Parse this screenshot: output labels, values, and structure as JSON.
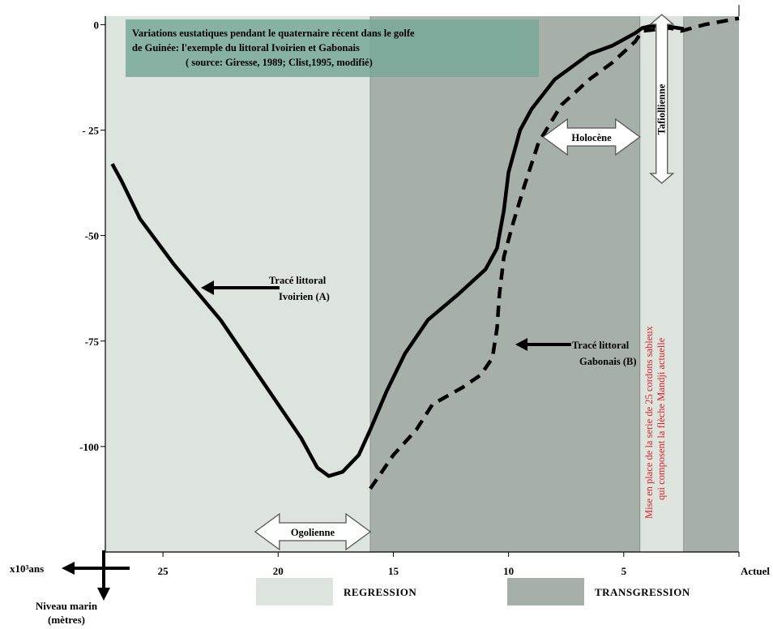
{
  "colors": {
    "regression": "#dde3dd",
    "transgression": "#a7b0a8",
    "title_box": "#78a898",
    "curve": "#000000",
    "red_note": "#e0202a",
    "arrow_fill": "#ffffff"
  },
  "chart_data": {
    "type": "line",
    "title_lines": [
      "Variations eustatiques pendant le quaternaire récent dans le golfe",
      "de Guinée: l'exemple du littoral Ivoirien et Gabonais",
      "( source: Giresse, 1989; Clist,1995, modifié)"
    ],
    "x_axis_label": "x10³ans",
    "y_axis_label_lines": [
      "Niveau marin",
      "(mètres)"
    ],
    "x_ticks": [
      "25",
      "20",
      "15",
      "10",
      "5",
      "Actuel"
    ],
    "y_ticks": [
      "0",
      "- 25",
      "-50",
      "-75",
      "-100"
    ],
    "xlim": [
      27.5,
      0
    ],
    "ylim": [
      -125,
      2
    ],
    "series": [
      {
        "name": "Tracé littoral Ivoirien (A)",
        "style": "solid",
        "points": [
          [
            27.2,
            -33
          ],
          [
            26.8,
            -37
          ],
          [
            26,
            -46
          ],
          [
            24.5,
            -57
          ],
          [
            22.5,
            -70
          ],
          [
            20.5,
            -86
          ],
          [
            19,
            -98
          ],
          [
            18.3,
            -105
          ],
          [
            17.8,
            -107
          ],
          [
            17.2,
            -106
          ],
          [
            16.5,
            -102
          ],
          [
            16,
            -96
          ],
          [
            15.3,
            -87
          ],
          [
            14.5,
            -78
          ],
          [
            13.5,
            -70
          ],
          [
            12.2,
            -64
          ],
          [
            11,
            -58
          ],
          [
            10.5,
            -53
          ],
          [
            10.2,
            -44
          ],
          [
            10,
            -35
          ],
          [
            9.5,
            -25
          ],
          [
            9,
            -20
          ],
          [
            8,
            -13
          ],
          [
            6.5,
            -7
          ],
          [
            5.5,
            -5
          ],
          [
            4.5,
            -2
          ],
          [
            4.2,
            -0.8
          ],
          [
            3.8,
            -0.3
          ],
          [
            3,
            -0.5
          ],
          [
            2.4,
            -1
          ]
        ]
      },
      {
        "name": "Tracé littoral Gabonais (B)",
        "style": "dashed",
        "points": [
          [
            16,
            -110
          ],
          [
            15,
            -102
          ],
          [
            14,
            -96
          ],
          [
            13.3,
            -90
          ],
          [
            12,
            -86
          ],
          [
            11.2,
            -83
          ],
          [
            10.7,
            -79
          ],
          [
            10.5,
            -72
          ],
          [
            10.4,
            -64
          ],
          [
            10.2,
            -55
          ],
          [
            9.8,
            -47
          ],
          [
            9.3,
            -38
          ],
          [
            8.7,
            -28
          ],
          [
            7.7,
            -19
          ],
          [
            6.5,
            -13
          ],
          [
            5.5,
            -9
          ],
          [
            4.5,
            -4
          ],
          [
            4.2,
            -1.5
          ],
          [
            3,
            -0.8
          ],
          [
            2.5,
            -1.5
          ],
          [
            1.5,
            0
          ],
          [
            0.5,
            1
          ],
          [
            0,
            1.5
          ]
        ]
      }
    ],
    "periods": [
      {
        "label": "REGRESSION",
        "from": 27.5,
        "to": 16
      },
      {
        "label": "TRANSGRESSION",
        "from": 16,
        "to": 4.3
      },
      {
        "label": "REGRESSION",
        "from": 4.3,
        "to": 2.4
      },
      {
        "label": "TRANSGRESSION",
        "from": 2.4,
        "to": 0
      }
    ],
    "stages": [
      {
        "label": "Ogolienne",
        "from": 21,
        "to": 16
      },
      {
        "label": "Holocène",
        "from": 8.5,
        "to": 4.3
      },
      {
        "label": "Tafiollienne",
        "from": 4.3,
        "to": 2.4
      }
    ],
    "annotations": {
      "ivoirien_lines": [
        "Tracé littoral",
        "Ivoirien (A)"
      ],
      "gabonais_lines": [
        "Tracé littoral",
        "Gabonais (B)"
      ],
      "red_note_lines": [
        "Mise en place de la serie de 25 cordons sableux",
        "qui composent la flèche Mandji actuelle"
      ]
    },
    "legend": [
      {
        "label": "REGRESSION",
        "color": "#dde3dd"
      },
      {
        "label": "TRANSGRESSION",
        "color": "#a7b0a8"
      }
    ],
    "grid": false
  }
}
